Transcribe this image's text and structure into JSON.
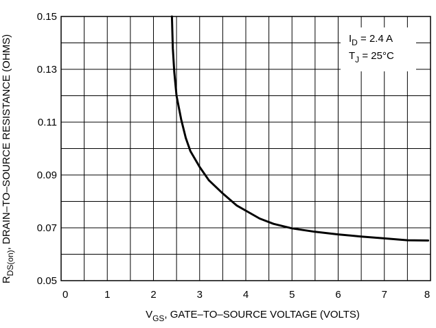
{
  "chart_data": {
    "type": "line",
    "xlim": [
      0,
      8
    ],
    "ylim": [
      0.05,
      0.15
    ],
    "x_ticks": [
      0,
      1,
      2,
      3,
      4,
      5,
      6,
      7,
      8
    ],
    "y_ticks": [
      0.05,
      0.07,
      0.09,
      0.11,
      0.13,
      0.15
    ],
    "x_tick_labels": [
      "0",
      "1",
      "2",
      "3",
      "4",
      "5",
      "6",
      "7",
      "8"
    ],
    "y_tick_labels": [
      "0.05",
      "0.07",
      "0.09",
      "0.11",
      "0.13",
      "0.15"
    ],
    "x_minor_per_major": 2,
    "y_minor_per_major": 2,
    "grid": true,
    "legend_placement": "top-right",
    "xlabel": {
      "main": "V",
      "sub": "GS",
      "rest": ", GATE–TO–SOURCE VOLTAGE (VOLTS)"
    },
    "ylabel": {
      "main": "R",
      "sub": "DS(on)",
      "rest": ", DRAIN–TO–SOURCE RESISTANCE (OHMS)"
    },
    "annotation": [
      {
        "main": "I",
        "sub": "D",
        "rest": " = 2.4 A"
      },
      {
        "main": "T",
        "sub": "J",
        "rest": " = 25°C"
      }
    ],
    "series": [
      {
        "x": [
          2.4,
          2.42,
          2.45,
          2.5,
          2.6,
          2.7,
          2.8,
          3.0,
          3.2,
          3.5,
          3.8,
          4.0,
          4.3,
          4.6,
          5.0,
          5.5,
          6.0,
          6.5,
          7.0,
          7.5,
          7.95
        ],
        "y": [
          0.15,
          0.138,
          0.129,
          0.12,
          0.111,
          0.104,
          0.099,
          0.093,
          0.088,
          0.083,
          0.0785,
          0.0765,
          0.0735,
          0.0715,
          0.0698,
          0.0685,
          0.0675,
          0.0667,
          0.066,
          0.0653,
          0.0652
        ]
      }
    ]
  }
}
